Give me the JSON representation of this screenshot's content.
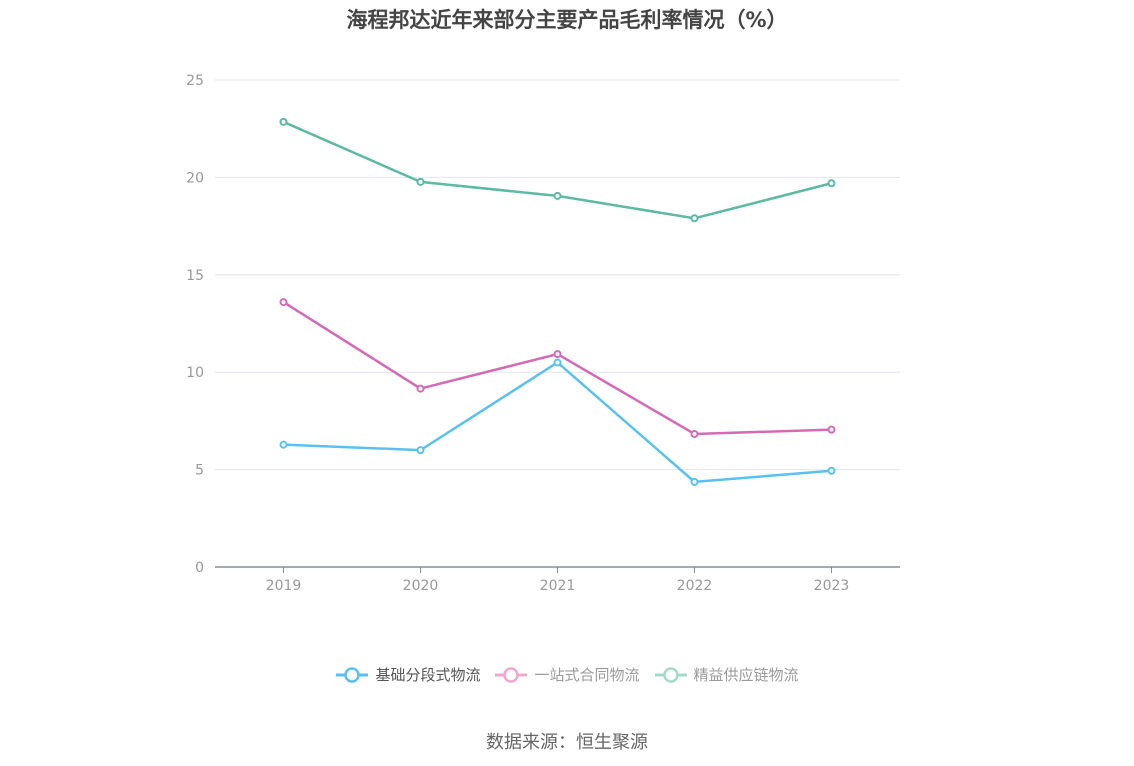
{
  "title": "海程邦达近年来部分主要产品毛利率情况（%）",
  "source": "数据来源：恒生聚源",
  "chart_data": {
    "type": "line",
    "title": "海程邦达近年来部分主要产品毛利率情况（%）",
    "categories": [
      "2019",
      "2020",
      "2021",
      "2022",
      "2023"
    ],
    "ylim": [
      0,
      25
    ],
    "yticks": [
      0,
      5,
      10,
      15,
      20,
      25
    ],
    "grid": true,
    "legend_position": "bottom",
    "series": [
      {
        "name": "基础分段式物流",
        "color": "#5bc0f0",
        "values": [
          6.28,
          6.0,
          10.5,
          4.37,
          4.94
        ]
      },
      {
        "name": "一站式合同物流",
        "color": "#d46ab4",
        "values": [
          13.6,
          9.16,
          10.93,
          6.83,
          7.05
        ]
      },
      {
        "name": "精益供应链物流",
        "color": "#5bb9a4",
        "values": [
          22.85,
          19.77,
          19.05,
          17.9,
          19.7
        ]
      }
    ]
  },
  "legend": [
    {
      "label": "基础分段式物流",
      "color": "#5bc0f0",
      "muted": false
    },
    {
      "label": "一站式合同物流",
      "color": "#f0a8cf",
      "muted": true
    },
    {
      "label": "精益供应链物流",
      "color": "#a3dac9",
      "muted": true
    }
  ]
}
